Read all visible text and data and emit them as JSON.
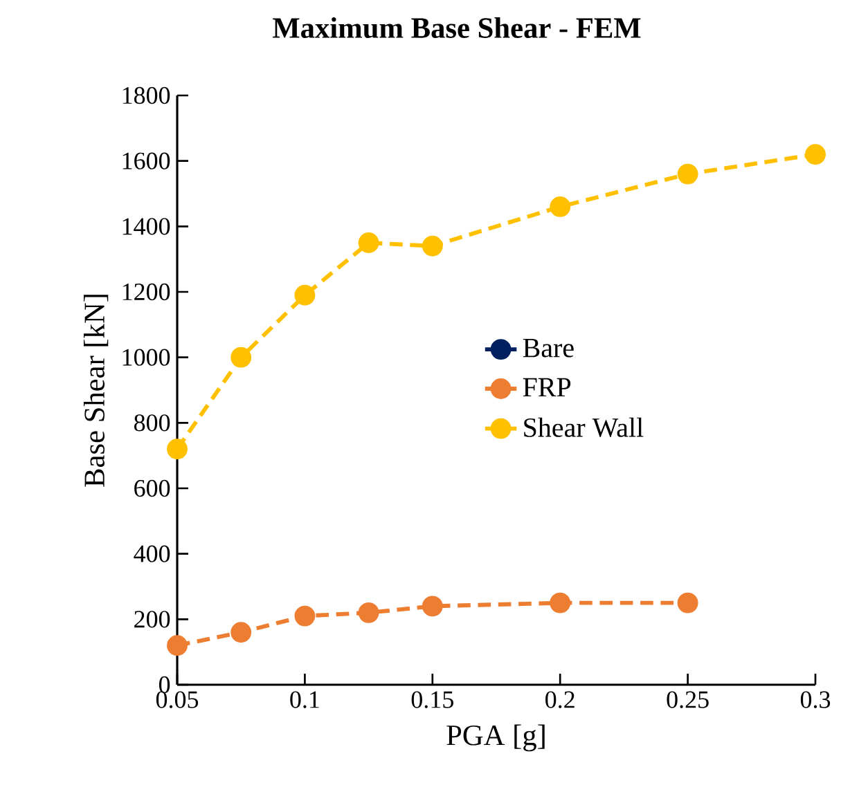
{
  "chart_data": {
    "type": "line",
    "title": "Maximum Base Shear - FEM",
    "xlabel": "PGA [g]",
    "ylabel": "Base Shear [kN]",
    "x": [
      0.05,
      0.075,
      0.1,
      0.125,
      0.15,
      0.2,
      0.25,
      0.3
    ],
    "series": [
      {
        "name": "Bare",
        "color": "#002060",
        "values": [
          null,
          null,
          null,
          null,
          null,
          null,
          null,
          null
        ]
      },
      {
        "name": "FRP",
        "color": "#ed7d31",
        "values": [
          120,
          160,
          210,
          220,
          240,
          250,
          250,
          null
        ]
      },
      {
        "name": "Shear Wall",
        "color": "#ffc000",
        "values": [
          720,
          1000,
          1190,
          1350,
          1340,
          1460,
          1560,
          1620
        ]
      }
    ],
    "xlim": [
      0.05,
      0.3
    ],
    "xticks": [
      0.05,
      0.1,
      0.15,
      0.2,
      0.25,
      0.3
    ],
    "ylim": [
      0,
      1800
    ],
    "yticks": [
      0,
      200,
      400,
      600,
      800,
      1000,
      1200,
      1400,
      1600,
      1800
    ],
    "grid": false,
    "legend": "right",
    "marker": "circle",
    "line_style": "dashed"
  }
}
